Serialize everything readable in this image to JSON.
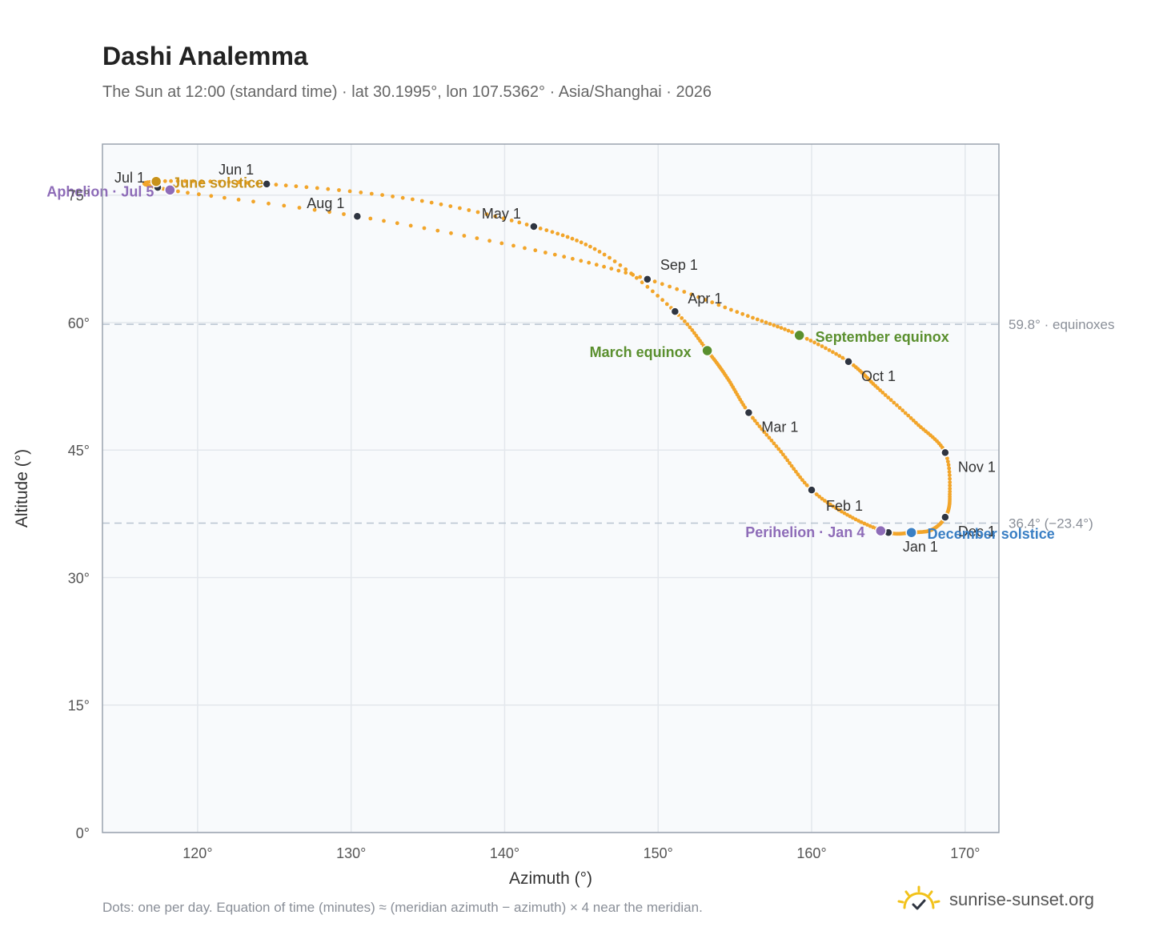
{
  "title": "Dashi Analemma",
  "subtitle": "The Sun at 12:00 (standard time) · lat 30.1995°, lon 107.5362° · Asia/Shanghai · 2026",
  "footnote": "Dots: one per day. Equation of time (minutes) ≈ (meridian azimuth − azimuth) × 4 near the meridian.",
  "brand": {
    "name": "sunrise-sunset.org",
    "icon": "sun-check-icon"
  },
  "colors": {
    "curve": "#f2a52a",
    "month_dot": "#2f3541",
    "june_solstice": "#c8921a",
    "aphelion": "#8e6cb8",
    "perihelion": "#8e6cb8",
    "equinox": "#5a8f2e",
    "december_solstice": "#3a7fc4",
    "grid": "#e3e7ec",
    "plot_bg": "#f8fafc",
    "frame": "#9aa3ae",
    "refline": "#b8c4d0"
  },
  "chart_data": {
    "type": "scatter",
    "xlabel": "Azimuth (°)",
    "ylabel": "Altitude (°)",
    "xlim": [
      113.8,
      172.2
    ],
    "ylim": [
      0,
      81
    ],
    "xticks": [
      {
        "value": 120,
        "label": "120°"
      },
      {
        "value": 130,
        "label": "130°"
      },
      {
        "value": 140,
        "label": "140°"
      },
      {
        "value": 150,
        "label": "150°"
      },
      {
        "value": 160,
        "label": "160°"
      },
      {
        "value": 170,
        "label": "170°"
      }
    ],
    "yticks": [
      {
        "value": 0,
        "label": "0°"
      },
      {
        "value": 15,
        "label": "15°"
      },
      {
        "value": 30,
        "label": "30°"
      },
      {
        "value": 45,
        "label": "45°"
      },
      {
        "value": 60,
        "label": "60°"
      },
      {
        "value": 75,
        "label": "75°"
      }
    ],
    "grid": true,
    "reference_lines": [
      {
        "value": 59.8,
        "label": "59.8° · equinoxes"
      },
      {
        "value": 36.4,
        "label": "36.4° (−23.4°)"
      }
    ],
    "curve_points": [
      [
        165.0,
        35.3
      ],
      [
        166.5,
        35.3
      ],
      [
        167.8,
        35.6
      ],
      [
        168.7,
        37.1
      ],
      [
        169.0,
        39.5
      ],
      [
        168.7,
        44.7
      ],
      [
        166.8,
        48.2
      ],
      [
        164.3,
        52.3
      ],
      [
        162.4,
        55.4
      ],
      [
        159.2,
        58.5
      ],
      [
        155.5,
        61.0
      ],
      [
        149.3,
        65.1
      ],
      [
        142.0,
        68.5
      ],
      [
        130.4,
        72.5
      ],
      [
        118.2,
        75.6
      ],
      [
        117.3,
        76.6
      ],
      [
        124.5,
        76.3
      ],
      [
        134.0,
        74.5
      ],
      [
        141.9,
        71.3
      ],
      [
        146.5,
        68.0
      ],
      [
        151.1,
        61.3
      ],
      [
        153.2,
        56.7
      ],
      [
        154.5,
        53.5
      ],
      [
        155.9,
        49.4
      ],
      [
        158.0,
        44.8
      ],
      [
        160.0,
        40.3
      ],
      [
        162.5,
        37.2
      ],
      [
        165.0,
        35.3
      ]
    ],
    "month_markers": [
      {
        "label": "Jan 1",
        "x": 165.0,
        "y": 35.3
      },
      {
        "label": "Feb 1",
        "x": 160.0,
        "y": 40.3
      },
      {
        "label": "Mar 1",
        "x": 155.9,
        "y": 49.4
      },
      {
        "label": "Apr 1",
        "x": 151.1,
        "y": 61.3
      },
      {
        "label": "May 1",
        "x": 141.9,
        "y": 71.3
      },
      {
        "label": "Jun 1",
        "x": 124.5,
        "y": 76.3
      },
      {
        "label": "Jul 1",
        "x": 117.4,
        "y": 75.9
      },
      {
        "label": "Aug 1",
        "x": 130.4,
        "y": 72.5
      },
      {
        "label": "Sep 1",
        "x": 149.3,
        "y": 65.1
      },
      {
        "label": "Oct 1",
        "x": 162.4,
        "y": 55.4
      },
      {
        "label": "Nov 1",
        "x": 168.7,
        "y": 44.7
      },
      {
        "label": "Dec 1",
        "x": 168.7,
        "y": 37.1
      }
    ],
    "events": [
      {
        "label": "June solstice",
        "x": 117.3,
        "y": 76.6,
        "color_key": "june_solstice"
      },
      {
        "label": "Aphelion · Jul 5",
        "x": 118.2,
        "y": 75.6,
        "color_key": "aphelion"
      },
      {
        "label": "March equinox",
        "x": 153.2,
        "y": 56.7,
        "color_key": "equinox"
      },
      {
        "label": "September equinox",
        "x": 159.2,
        "y": 58.5,
        "color_key": "equinox"
      },
      {
        "label": "Perihelion · Jan 4",
        "x": 164.5,
        "y": 35.5,
        "color_key": "perihelion"
      },
      {
        "label": "December solstice",
        "x": 166.5,
        "y": 35.3,
        "color_key": "december_solstice"
      }
    ]
  }
}
